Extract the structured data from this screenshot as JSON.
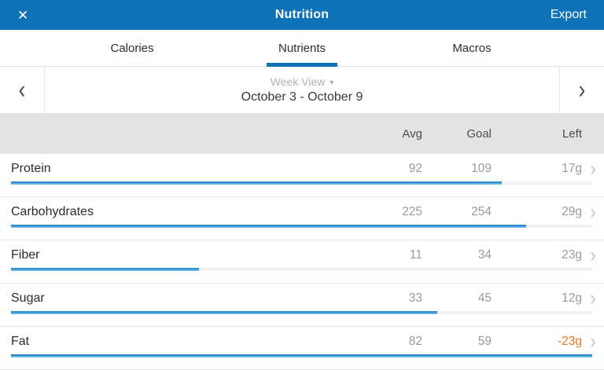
{
  "header": {
    "title": "Nutrition",
    "export_label": "Export"
  },
  "icons": {
    "close": "✕",
    "chevron_left": "‹",
    "chevron_right": "›",
    "caret_down": "▾",
    "row_chevron": "›"
  },
  "tabs": [
    {
      "label": "Calories",
      "active": false
    },
    {
      "label": "Nutrients",
      "active": true
    },
    {
      "label": "Macros",
      "active": false
    }
  ],
  "week_nav": {
    "view_label": "Week View",
    "date_range": "October 3 - October 9"
  },
  "columns": {
    "avg": "Avg",
    "goal": "Goal",
    "left": "Left"
  },
  "rows": [
    {
      "name": "Protein",
      "avg": 92,
      "goal": 109,
      "left": "17g"
    },
    {
      "name": "Carbohydrates",
      "avg": 225,
      "goal": 254,
      "left": "29g"
    },
    {
      "name": "Fiber",
      "avg": 11,
      "goal": 34,
      "left": "23g"
    },
    {
      "name": "Sugar",
      "avg": 33,
      "goal": 45,
      "left": "12g"
    },
    {
      "name": "Fat",
      "avg": 82,
      "goal": 59,
      "left": "-23g"
    }
  ],
  "colors": {
    "header_blue": "#0d72b8",
    "tab_indicator_blue": "#0d72b8",
    "bar_fill_blue": "#2b8cce",
    "bar_fill_light": "#85c8ee",
    "bar_track_gray": "#f1f1f1",
    "negative_orange": "#e8791f",
    "column_strip_gray": "#e4e4e4"
  }
}
